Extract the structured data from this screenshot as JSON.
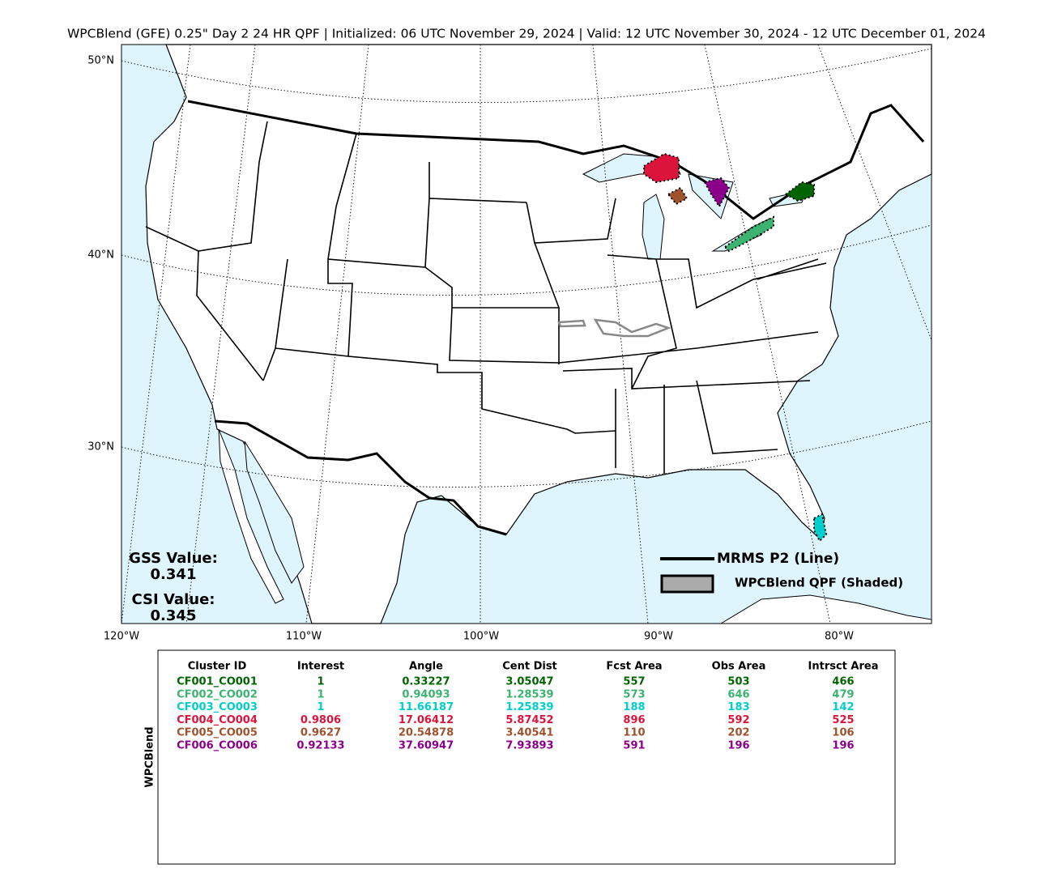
{
  "title": "WPCBlend (GFE) 0.25\" Day 2 24 HR QPF | Initialized: 06 UTC November 29, 2024 | Valid: 12 UTC November 30, 2024 - 12 UTC December 01, 2024",
  "map": {
    "lat_labels": [
      "50°N",
      "40°N",
      "30°N"
    ],
    "lon_labels": [
      "120°W",
      "110°W",
      "100°W",
      "90°W",
      "80°W"
    ],
    "legend": [
      "MRMS P2 (Line)",
      "WPCBlend QPF (Shaded)"
    ],
    "scores": [
      {
        "label": "GSS Value:",
        "value": "0.341"
      },
      {
        "label": "CSI Value:",
        "value": "0.345"
      }
    ]
  },
  "table": {
    "side_label": "WPCBlend",
    "headers": [
      "Cluster ID",
      "Interest",
      "Angle",
      "Cent Dist",
      "Fcst Area",
      "Obs Area",
      "Intrsct Area"
    ],
    "rows": [
      {
        "color": "#006400",
        "cells": [
          "CF001_CO001",
          "1",
          "0.33227",
          "3.05047",
          "557",
          "503",
          "466"
        ]
      },
      {
        "color": "#3cb371",
        "cells": [
          "CF002_CO002",
          "1",
          "0.94093",
          "1.28539",
          "573",
          "646",
          "479"
        ]
      },
      {
        "color": "#00cdcd",
        "cells": [
          "CF003_CO003",
          "1",
          "11.66187",
          "1.25839",
          "188",
          "183",
          "142"
        ]
      },
      {
        "color": "#dc143c",
        "cells": [
          "CF004_CO004",
          "0.9806",
          "17.06412",
          "5.87452",
          "896",
          "592",
          "525"
        ]
      },
      {
        "color": "#a0522d",
        "cells": [
          "CF005_CO005",
          "0.9627",
          "20.54878",
          "3.40541",
          "110",
          "202",
          "106"
        ]
      },
      {
        "color": "#8b008b",
        "cells": [
          "CF006_CO006",
          "0.92133",
          "37.60947",
          "7.93893",
          "591",
          "196",
          "196"
        ]
      }
    ]
  }
}
